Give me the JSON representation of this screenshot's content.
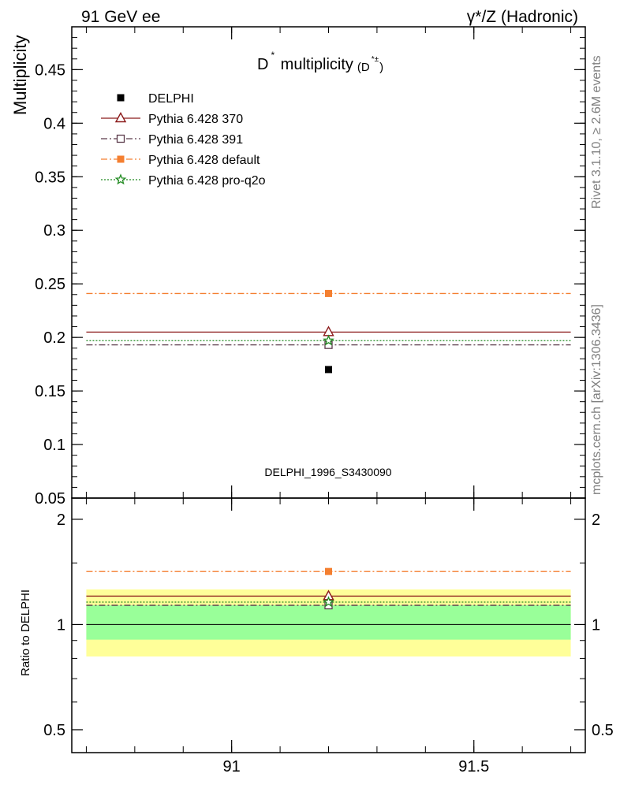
{
  "header": {
    "left": "91 GeV ee",
    "right": "γ*/Z (Hadronic)"
  },
  "side_labels": {
    "rivet": "Rivet 3.1.10, ≥ 2.6M events",
    "mcplots": "mcplots.cern.ch [arXiv:1306.3436]"
  },
  "watermark": "DELPHI_1996_S3430090",
  "colors": {
    "data": "#000000",
    "p370": "#8b1a1a",
    "p391": "#5a3a4a",
    "pdefault": "#f47f30",
    "pq2o": "#228b22",
    "band_inner": "#99ff99",
    "band_outer": "#ffff99"
  },
  "chart_data": [
    {
      "type": "scatter",
      "panel": "main",
      "title_main": "D",
      "title_star": "*",
      "title_rest": " multiplicity",
      "title_sub_main": "(D",
      "title_sub_sup": "*±",
      "title_sub_end": ")",
      "ylabel": "Multiplicity",
      "xlim": [
        90.67,
        91.73
      ],
      "ylim": [
        0.05,
        0.49
      ],
      "x_ticks": [
        91,
        91.5
      ],
      "y_ticks": [
        0.05,
        0.1,
        0.15,
        0.2,
        0.25,
        0.3,
        0.35,
        0.4,
        0.45
      ],
      "y_tick_labels": [
        "0.05",
        "0.1",
        "0.15",
        "0.2",
        "0.25",
        "0.3",
        "0.35",
        "0.4",
        "0.45"
      ],
      "legend_position": "top-left",
      "series": [
        {
          "key": "data",
          "name": "DELPHI",
          "x": [
            91.2
          ],
          "y": [
            0.17
          ],
          "line": false,
          "marker": "square-filled"
        },
        {
          "key": "p370",
          "name": "Pythia 6.428 370",
          "x": [
            91.2
          ],
          "y": [
            0.205
          ],
          "x_range": [
            90.7,
            91.7
          ],
          "line": "solid",
          "marker": "triangle-open"
        },
        {
          "key": "p391",
          "name": "Pythia 6.428 391",
          "x": [
            91.2
          ],
          "y": [
            0.193
          ],
          "x_range": [
            90.7,
            91.7
          ],
          "line": "dashdot",
          "marker": "square-open"
        },
        {
          "key": "pdefault",
          "name": "Pythia 6.428 default",
          "x": [
            91.2
          ],
          "y": [
            0.241
          ],
          "x_range": [
            90.7,
            91.7
          ],
          "line": "dashdot",
          "marker": "square-filled"
        },
        {
          "key": "pq2o",
          "name": "Pythia 6.428 pro-q2o",
          "x": [
            91.2
          ],
          "y": [
            0.197
          ],
          "x_range": [
            90.7,
            91.7
          ],
          "line": "dotted",
          "marker": "star-open"
        }
      ]
    },
    {
      "type": "scatter",
      "panel": "ratio",
      "ylabel": "Ratio to DELPHI",
      "xlim": [
        90.67,
        91.73
      ],
      "ylim": [
        0.43,
        2.3
      ],
      "log_y": true,
      "x_ticks": [
        91,
        91.5
      ],
      "x_tick_labels": [
        "91",
        "91.5"
      ],
      "y_ticks": [
        0.5,
        1,
        2
      ],
      "y_tick_labels": [
        "0.5",
        "1",
        "2"
      ],
      "band_inner": [
        0.905,
        1.135
      ],
      "band_outer": [
        0.81,
        1.26
      ],
      "series": [
        {
          "key": "p370",
          "x": [
            91.2
          ],
          "y": [
            1.206
          ],
          "x_range": [
            90.7,
            91.7
          ],
          "line": "solid",
          "marker": "triangle-open"
        },
        {
          "key": "p391",
          "x": [
            91.2
          ],
          "y": [
            1.135
          ],
          "x_range": [
            90.7,
            91.7
          ],
          "line": "dashdot",
          "marker": "square-open"
        },
        {
          "key": "pdefault",
          "x": [
            91.2
          ],
          "y": [
            1.418
          ],
          "x_range": [
            90.7,
            91.7
          ],
          "line": "dashdot",
          "marker": "square-filled"
        },
        {
          "key": "pq2o",
          "x": [
            91.2
          ],
          "y": [
            1.159
          ],
          "x_range": [
            90.7,
            91.7
          ],
          "line": "dotted",
          "marker": "star-open"
        }
      ]
    }
  ]
}
